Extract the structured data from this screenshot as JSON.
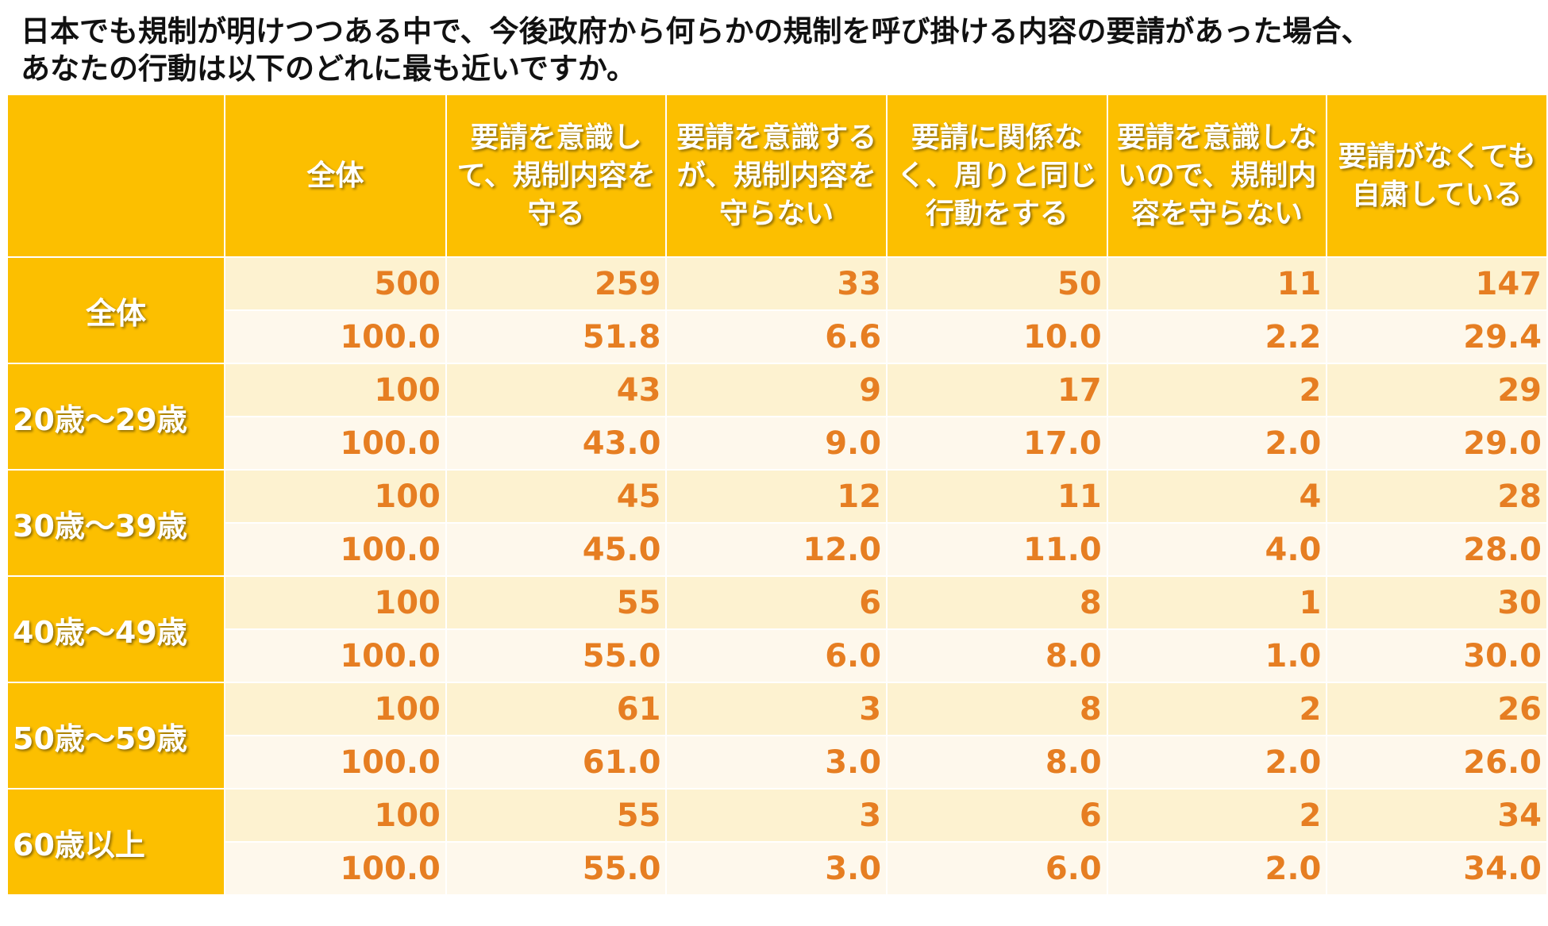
{
  "title": {
    "line1": "日本でも規制が明けつつある中で、今後政府から何らかの規制を呼び掛ける内容の要請があった場合、",
    "line2": "あなたの行動は以下のどれに最も近いですか。"
  },
  "colors": {
    "header": "#FCBF00",
    "value_text": "#E67E22",
    "row_n_bg": "#FDF2D0",
    "row_p_bg": "#FEF8EC"
  },
  "chart_data": {
    "type": "table",
    "columns": [
      "全体",
      "要請を意識して、規制内容を守る",
      "要請を意識するが、規制内容を守らない",
      "要請に関係なく、周りと同じ行動をする",
      "要請を意識しないので、規制内容を守らない",
      "要請がなくても自粛している"
    ],
    "rows": [
      {
        "label": "全体",
        "n": [
          "500",
          "259",
          "33",
          "50",
          "11",
          "147"
        ],
        "pct": [
          "100.0",
          "51.8",
          "6.6",
          "10.0",
          "2.2",
          "29.4"
        ]
      },
      {
        "label": "20歳～29歳",
        "n": [
          "100",
          "43",
          "9",
          "17",
          "2",
          "29"
        ],
        "pct": [
          "100.0",
          "43.0",
          "9.0",
          "17.0",
          "2.0",
          "29.0"
        ]
      },
      {
        "label": "30歳～39歳",
        "n": [
          "100",
          "45",
          "12",
          "11",
          "4",
          "28"
        ],
        "pct": [
          "100.0",
          "45.0",
          "12.0",
          "11.0",
          "4.0",
          "28.0"
        ]
      },
      {
        "label": "40歳～49歳",
        "n": [
          "100",
          "55",
          "6",
          "8",
          "1",
          "30"
        ],
        "pct": [
          "100.0",
          "55.0",
          "6.0",
          "8.0",
          "1.0",
          "30.0"
        ]
      },
      {
        "label": "50歳～59歳",
        "n": [
          "100",
          "61",
          "3",
          "8",
          "2",
          "26"
        ],
        "pct": [
          "100.0",
          "61.0",
          "3.0",
          "8.0",
          "2.0",
          "26.0"
        ]
      },
      {
        "label": "60歳以上",
        "n": [
          "100",
          "55",
          "3",
          "6",
          "2",
          "34"
        ],
        "pct": [
          "100.0",
          "55.0",
          "3.0",
          "6.0",
          "2.0",
          "34.0"
        ]
      }
    ]
  }
}
